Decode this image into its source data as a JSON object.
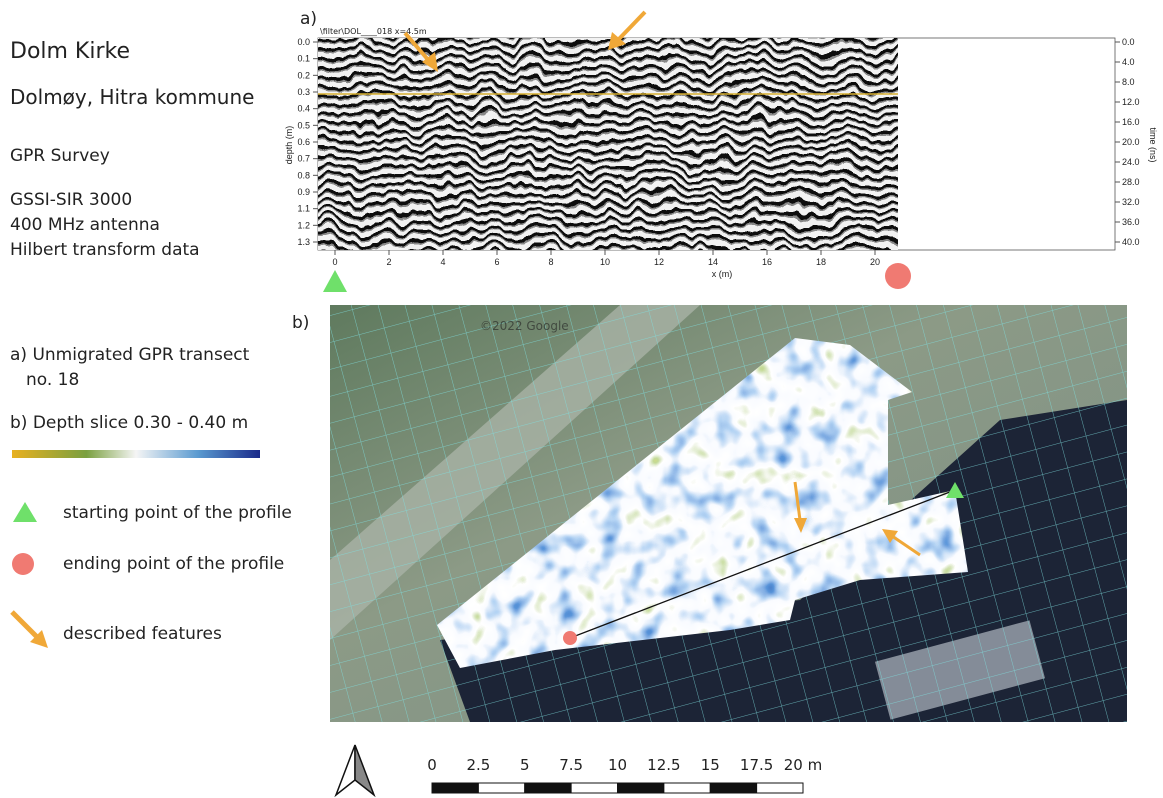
{
  "sidebar": {
    "title": "Dolm Kirke",
    "location": "Dolmøy, Hitra kommune",
    "survey": "GPR Survey",
    "equipment": [
      "GSSI-SIR 3000",
      "400 MHz antenna",
      "Hilbert transform data"
    ],
    "panel_a_caption": [
      "a) Unmigrated GPR transect",
      "no. 18"
    ],
    "panel_b_caption": "b) Depth slice 0.30 - 0.40 m",
    "legend": [
      "starting point of the profile",
      "ending point of the profile",
      "described features"
    ]
  },
  "radargram": {
    "label": "a)",
    "file": "\\filter\\DOL____018  x=4.5m",
    "y_label": "depth (m)",
    "y_ticks": [
      "0.0",
      "0.1",
      "0.2",
      "0.3",
      "0.4",
      "0.5",
      "0.6",
      "0.7",
      "0.8",
      "0.9",
      "1.1",
      "1.2",
      "1.3"
    ],
    "y2_label": "time (ns)",
    "y2_ticks": [
      "0.0",
      "4.0",
      "8.0",
      "12.0",
      "16.0",
      "20.0",
      "24.0",
      "28.0",
      "32.0",
      "36.0",
      "40.0"
    ],
    "x_label": "x (m)",
    "x_ticks": [
      "0",
      "2",
      "4",
      "6",
      "8",
      "10",
      "12",
      "14",
      "16",
      "18",
      "20"
    ]
  },
  "depth_slice": {
    "label": "b)",
    "watermark": "©2022 Google"
  },
  "scale_bar": {
    "ticks": [
      "0",
      "2.5",
      "5",
      "7.5",
      "10",
      "12.5",
      "15",
      "17.5",
      "20 m"
    ]
  }
}
